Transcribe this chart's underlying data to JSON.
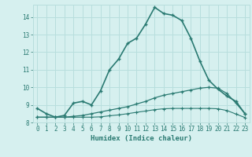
{
  "xlabel": "Humidex (Indice chaleur)",
  "xlim": [
    -0.5,
    23.5
  ],
  "ylim": [
    8,
    14.7
  ],
  "yticks": [
    8,
    9,
    10,
    11,
    12,
    13,
    14
  ],
  "xticks": [
    0,
    1,
    2,
    3,
    4,
    5,
    6,
    7,
    8,
    9,
    10,
    11,
    12,
    13,
    14,
    15,
    16,
    17,
    18,
    19,
    20,
    21,
    22,
    23
  ],
  "background_color": "#d6f0ef",
  "grid_color": "#b8dedd",
  "line_color": "#2a7a72",
  "line1_x": [
    0,
    1,
    2,
    3,
    4,
    5,
    6,
    7,
    8,
    9,
    10,
    11,
    12,
    13,
    14,
    15,
    16,
    17,
    18,
    19,
    20,
    21,
    22,
    23
  ],
  "line1_y": [
    8.8,
    8.5,
    8.3,
    8.4,
    9.1,
    9.2,
    9.0,
    9.8,
    11.0,
    11.6,
    12.5,
    12.8,
    13.6,
    14.55,
    14.2,
    14.1,
    13.8,
    12.8,
    11.5,
    10.4,
    9.9,
    9.5,
    9.2,
    8.5
  ],
  "line2_x": [
    0,
    1,
    2,
    3,
    4,
    5,
    6,
    7,
    8,
    9,
    10,
    11,
    12,
    13,
    14,
    15,
    16,
    17,
    18,
    19,
    20,
    21,
    22,
    23
  ],
  "line2_y": [
    8.3,
    8.3,
    8.3,
    8.3,
    8.35,
    8.4,
    8.5,
    8.6,
    8.7,
    8.8,
    8.9,
    9.05,
    9.2,
    9.4,
    9.55,
    9.65,
    9.75,
    9.85,
    9.95,
    10.0,
    9.95,
    9.65,
    9.1,
    8.5
  ],
  "line3_x": [
    0,
    1,
    2,
    3,
    4,
    5,
    6,
    7,
    8,
    9,
    10,
    11,
    12,
    13,
    14,
    15,
    16,
    17,
    18,
    19,
    20,
    21,
    22,
    23
  ],
  "line3_y": [
    8.3,
    8.3,
    8.3,
    8.3,
    8.3,
    8.3,
    8.3,
    8.32,
    8.38,
    8.43,
    8.5,
    8.58,
    8.65,
    8.73,
    8.78,
    8.8,
    8.8,
    8.8,
    8.8,
    8.8,
    8.78,
    8.68,
    8.48,
    8.28
  ]
}
